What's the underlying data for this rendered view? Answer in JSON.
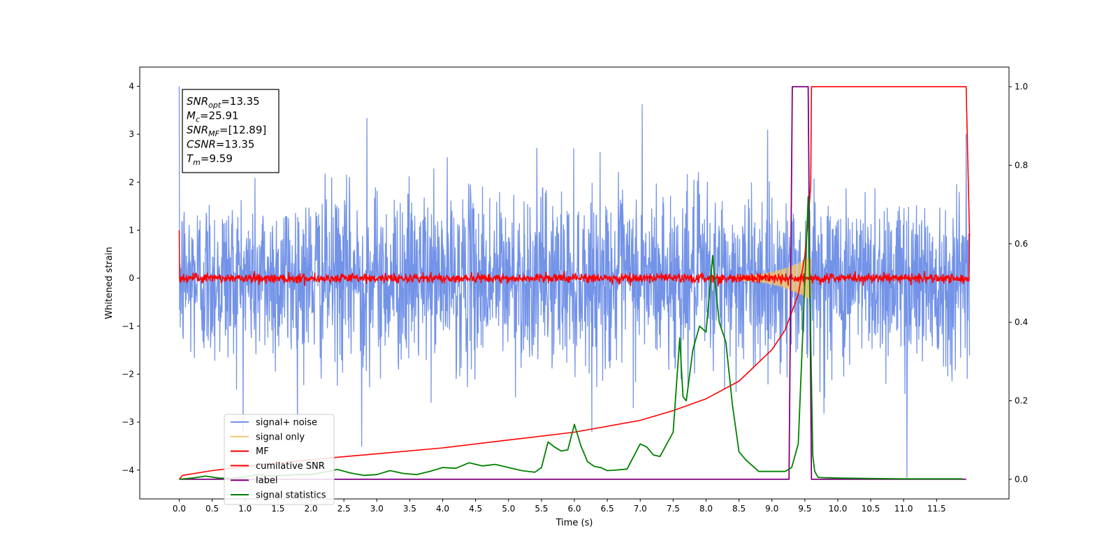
{
  "chart_data": {
    "type": "line",
    "title": "",
    "xlabel": "Time (s)",
    "ylabel_left": "Whitened strain",
    "ylabel_right": "",
    "xlim": [
      -0.6,
      12.6
    ],
    "ylim_left": [
      -4.6,
      4.4
    ],
    "ylim_right": [
      -0.05,
      1.05
    ],
    "x_ticks": [
      "0.0",
      "0.5",
      "1.0",
      "1.5",
      "2.0",
      "2.5",
      "3.0",
      "3.5",
      "4.0",
      "4.5",
      "5.0",
      "5.5",
      "6.0",
      "6.5",
      "7.0",
      "7.5",
      "8.0",
      "8.5",
      "9.0",
      "9.5",
      "10.0",
      "10.5",
      "11.0",
      "11.5"
    ],
    "y_left_ticks": [
      "4",
      "3",
      "2",
      "1",
      "0",
      "−1",
      "−2",
      "−3",
      "−4"
    ],
    "y_right_ticks": [
      "1.0",
      "0.8",
      "0.6",
      "0.4",
      "0.2",
      "0.0"
    ],
    "grid": false,
    "legend_position": "lower-left",
    "annotation": {
      "lines": [
        {
          "name": "SNR",
          "sub": "opt",
          "value": "=13.35"
        },
        {
          "name": "M",
          "sub": "c",
          "value": "=25.91"
        },
        {
          "name": "SNR",
          "sub": "MF",
          "value": "=[12.89]"
        },
        {
          "name": "CSNR",
          "sub": "",
          "value": "=13.35"
        },
        {
          "name": "T",
          "sub": "m",
          "value": "=9.59"
        }
      ]
    },
    "series": [
      {
        "name": "signal+ noise",
        "color": "#7393e8",
        "axis": "left",
        "description_values": {
          "x_range": [
            0,
            12
          ],
          "amplitude_std": 0.9,
          "notable_spikes": [
            [
              0.0,
              4.0
            ],
            [
              7.03,
              3.62
            ],
            [
              2.85,
              3.33
            ],
            [
              2.77,
              -3.5
            ],
            [
              11.05,
              -4.15
            ],
            [
              11.95,
              3.0
            ]
          ]
        }
      },
      {
        "name": "signal only",
        "color": "#f5c36b",
        "axis": "left",
        "chirp": {
          "start": 8.5,
          "peak_time": 9.59,
          "peak_amplitude": 0.45
        }
      },
      {
        "name": "MF",
        "color": "#ff0000",
        "axis": "left",
        "amplitude_std": 0.05
      },
      {
        "name": "cumilative SNR",
        "color": "#ff0000",
        "axis": "right",
        "x": [
          0.0,
          0.05,
          0.5,
          1.0,
          2.0,
          3.0,
          4.0,
          5.0,
          6.0,
          7.0,
          7.5,
          8.0,
          8.5,
          9.0,
          9.2,
          9.4,
          9.5,
          9.55,
          9.59,
          9.6,
          11.95,
          12.0
        ],
        "y": [
          0.0,
          0.01,
          0.022,
          0.032,
          0.05,
          0.065,
          0.08,
          0.1,
          0.12,
          0.15,
          0.175,
          0.205,
          0.25,
          0.33,
          0.38,
          0.47,
          0.57,
          0.66,
          0.75,
          1.0,
          1.0,
          0.62
        ]
      },
      {
        "name": "label",
        "color": "#800080",
        "axis": "right",
        "x": [
          0.0,
          9.26,
          9.31,
          9.55,
          9.6,
          11.95
        ],
        "y": [
          0.0,
          0.0,
          1.0,
          1.0,
          0.0,
          0.0
        ]
      },
      {
        "name": "signal statistics",
        "color": "#008000",
        "axis": "right",
        "x": [
          0.0,
          0.2,
          0.4,
          0.6,
          0.8,
          1.0,
          1.2,
          1.4,
          1.6,
          1.8,
          2.0,
          2.2,
          2.4,
          2.6,
          2.8,
          3.0,
          3.2,
          3.4,
          3.6,
          3.8,
          4.0,
          4.2,
          4.4,
          4.6,
          4.8,
          5.0,
          5.2,
          5.4,
          5.5,
          5.6,
          5.7,
          5.8,
          5.9,
          6.0,
          6.1,
          6.2,
          6.3,
          6.4,
          6.5,
          6.6,
          6.8,
          7.0,
          7.1,
          7.2,
          7.3,
          7.5,
          7.6,
          7.65,
          7.7,
          7.8,
          7.9,
          8.0,
          8.1,
          8.15,
          8.2,
          8.3,
          8.4,
          8.5,
          8.6,
          8.8,
          9.0,
          9.2,
          9.3,
          9.4,
          9.5,
          9.55,
          9.59,
          9.62,
          9.65,
          9.7,
          9.8,
          10.0,
          10.5,
          11.0,
          11.9
        ],
        "y": [
          0.0,
          0.003,
          0.008,
          0.003,
          0.002,
          0.006,
          0.012,
          0.008,
          0.01,
          0.012,
          0.012,
          0.018,
          0.025,
          0.016,
          0.01,
          0.012,
          0.022,
          0.015,
          0.012,
          0.02,
          0.03,
          0.028,
          0.042,
          0.034,
          0.038,
          0.03,
          0.022,
          0.018,
          0.03,
          0.095,
          0.082,
          0.072,
          0.075,
          0.14,
          0.085,
          0.045,
          0.033,
          0.03,
          0.022,
          0.023,
          0.026,
          0.09,
          0.082,
          0.062,
          0.058,
          0.12,
          0.36,
          0.21,
          0.2,
          0.33,
          0.39,
          0.375,
          0.57,
          0.48,
          0.4,
          0.35,
          0.19,
          0.07,
          0.05,
          0.02,
          0.02,
          0.02,
          0.03,
          0.09,
          0.5,
          0.72,
          0.35,
          0.06,
          0.02,
          0.005,
          0.004,
          0.003,
          0.002,
          0.001,
          0.001
        ]
      }
    ]
  }
}
